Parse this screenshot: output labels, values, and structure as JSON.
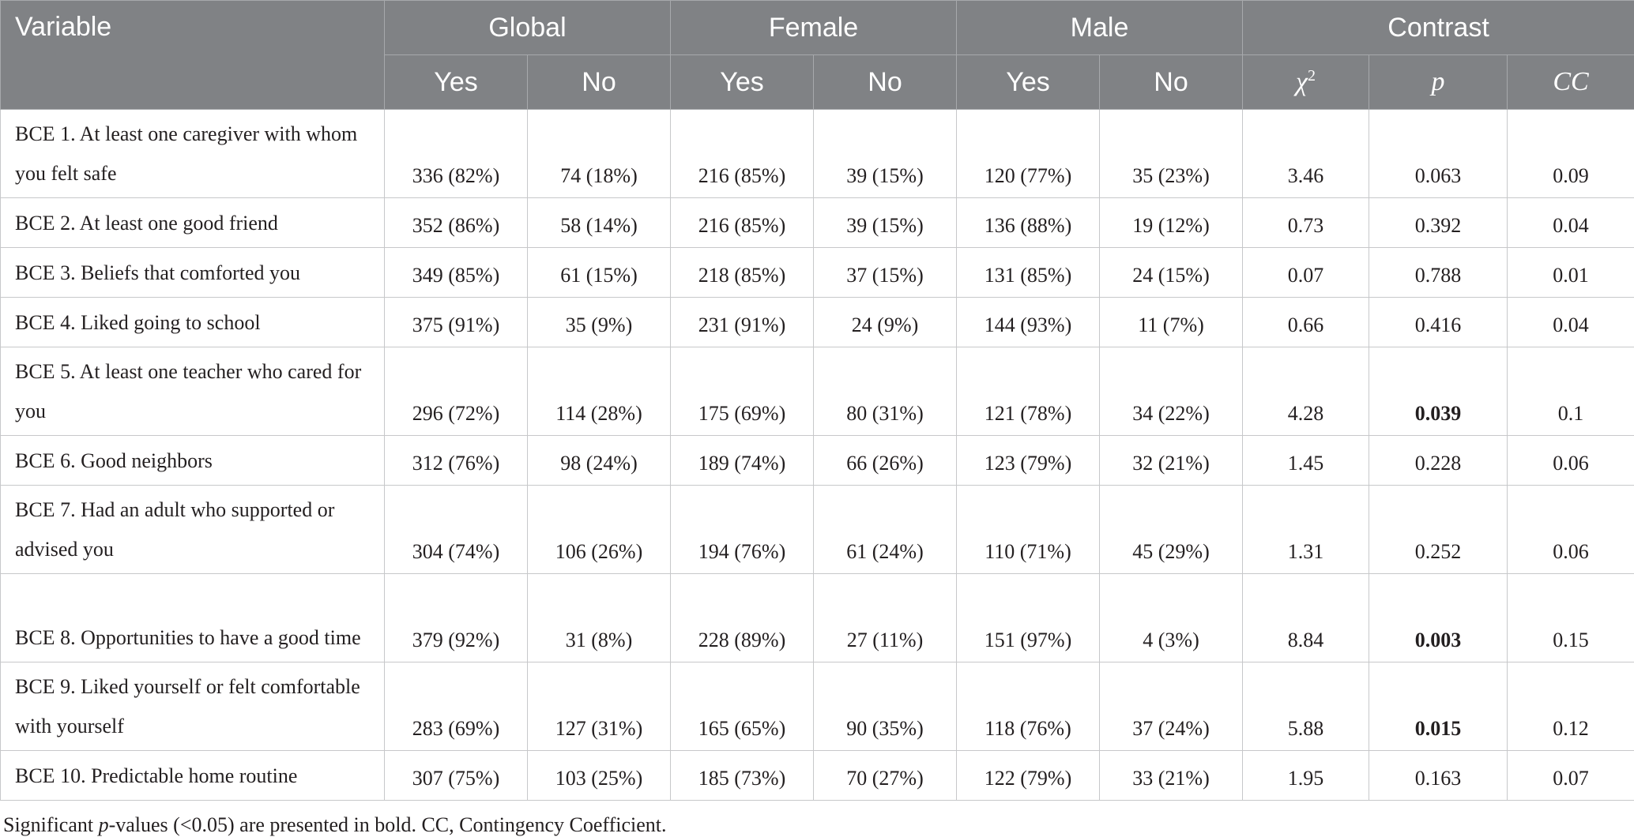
{
  "header": {
    "variable": "Variable",
    "groups": [
      "Global",
      "Female",
      "Male",
      "Contrast"
    ],
    "sub": [
      "Yes",
      "No",
      "Yes",
      "No",
      "Yes",
      "No"
    ],
    "chi": "χ",
    "chi_sup": "2",
    "p": "p",
    "cc": "CC"
  },
  "rows": [
    {
      "label": "BCE 1. At least one caregiver with whom you felt safe",
      "cells": [
        "336 (82%)",
        "74 (18%)",
        "216 (85%)",
        "39 (15%)",
        "120 (77%)",
        "35 (23%)",
        "3.46",
        "0.063",
        "0.09"
      ],
      "sig": false,
      "tall": true
    },
    {
      "label": "BCE 2. At least one good friend",
      "cells": [
        "352 (86%)",
        "58 (14%)",
        "216 (85%)",
        "39 (15%)",
        "136 (88%)",
        "19 (12%)",
        "0.73",
        "0.392",
        "0.04"
      ],
      "sig": false,
      "tall": false
    },
    {
      "label": "BCE 3. Beliefs that comforted you",
      "cells": [
        "349 (85%)",
        "61 (15%)",
        "218 (85%)",
        "37 (15%)",
        "131 (85%)",
        "24 (15%)",
        "0.07",
        "0.788",
        "0.01"
      ],
      "sig": false,
      "tall": false
    },
    {
      "label": "BCE 4. Liked going to school",
      "cells": [
        "375 (91%)",
        "35 (9%)",
        "231 (91%)",
        "24 (9%)",
        "144 (93%)",
        "11 (7%)",
        "0.66",
        "0.416",
        "0.04"
      ],
      "sig": false,
      "tall": false
    },
    {
      "label": "BCE 5. At least one teacher who cared for you",
      "cells": [
        "296 (72%)",
        "114 (28%)",
        "175 (69%)",
        "80 (31%)",
        "121 (78%)",
        "34 (22%)",
        "4.28",
        "0.039",
        "0.1"
      ],
      "sig": true,
      "tall": true
    },
    {
      "label": "BCE 6. Good neighbors",
      "cells": [
        "312 (76%)",
        "98 (24%)",
        "189 (74%)",
        "66 (26%)",
        "123 (79%)",
        "32 (21%)",
        "1.45",
        "0.228",
        "0.06"
      ],
      "sig": false,
      "tall": false
    },
    {
      "label": "BCE 7. Had an adult who supported or advised you",
      "cells": [
        "304 (74%)",
        "106 (26%)",
        "194 (76%)",
        "61 (24%)",
        "110 (71%)",
        "45 (29%)",
        "1.31",
        "0.252",
        "0.06"
      ],
      "sig": false,
      "tall": true
    },
    {
      "label": "BCE 8. Opportunities to have a good time",
      "cells": [
        "379 (92%)",
        "31 (8%)",
        "228 (89%)",
        "27 (11%)",
        "151 (97%)",
        "4 (3%)",
        "8.84",
        "0.003",
        "0.15"
      ],
      "sig": true,
      "tall": true
    },
    {
      "label": "BCE 9. Liked yourself or felt comfortable with yourself",
      "cells": [
        "283 (69%)",
        "127 (31%)",
        "165 (65%)",
        "90 (35%)",
        "118 (76%)",
        "37 (24%)",
        "5.88",
        "0.015",
        "0.12"
      ],
      "sig": true,
      "tall": true
    },
    {
      "label": "BCE 10. Predictable home routine",
      "cells": [
        "307 (75%)",
        "103 (25%)",
        "185 (73%)",
        "70 (27%)",
        "122 (79%)",
        "33 (21%)",
        "1.95",
        "0.163",
        "0.07"
      ],
      "sig": false,
      "tall": false
    }
  ],
  "note": {
    "pre": "Significant ",
    "italic": "p",
    "post": "-values (<0.05) are presented in bold. CC, Contingency Coefficient."
  }
}
